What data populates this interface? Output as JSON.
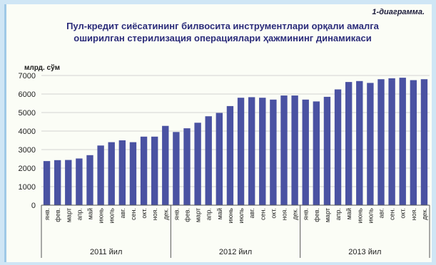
{
  "label": "1-диаграмма.",
  "chart_data": {
    "type": "bar",
    "title_lines": [
      "Пул-кредит сиёсатининг билвосита инструментлари орқали амалга",
      "оширилган стерилизация операциялари ҳажмининг динамикаси"
    ],
    "ylabel": "млрд. сўм",
    "ylim": [
      0,
      7000
    ],
    "yticks": [
      0,
      1000,
      2000,
      3000,
      4000,
      5000,
      6000,
      7000
    ],
    "grid": true,
    "bar_color": "#4a52a2",
    "categories": [
      "янв.",
      "фев.",
      "март",
      "апр.",
      "май",
      "июнь",
      "июль",
      "авг.",
      "сен.",
      "окт.",
      "ноя.",
      "дек.",
      "янв.",
      "фев.",
      "март",
      "апр.",
      "май",
      "июнь",
      "июль",
      "авг.",
      "сен.",
      "окт.",
      "ноя.",
      "дек.",
      "янв.",
      "фев.",
      "март",
      "апр.",
      "май",
      "июнь",
      "июль",
      "авг.",
      "сен.",
      "окт.",
      "ноя.",
      "дек."
    ],
    "values": [
      2380,
      2430,
      2440,
      2520,
      2700,
      3220,
      3400,
      3500,
      3400,
      3700,
      3700,
      4280,
      3950,
      4150,
      4450,
      4800,
      4980,
      5350,
      5800,
      5830,
      5800,
      5700,
      5920,
      5920,
      5700,
      5600,
      5850,
      6250,
      6650,
      6700,
      6600,
      6800,
      6850,
      6880,
      6750,
      6800
    ],
    "groups": [
      {
        "label": "2011 йил",
        "count": 12
      },
      {
        "label": "2012 йил",
        "count": 12
      },
      {
        "label": "2013 йил",
        "count": 12
      }
    ]
  }
}
